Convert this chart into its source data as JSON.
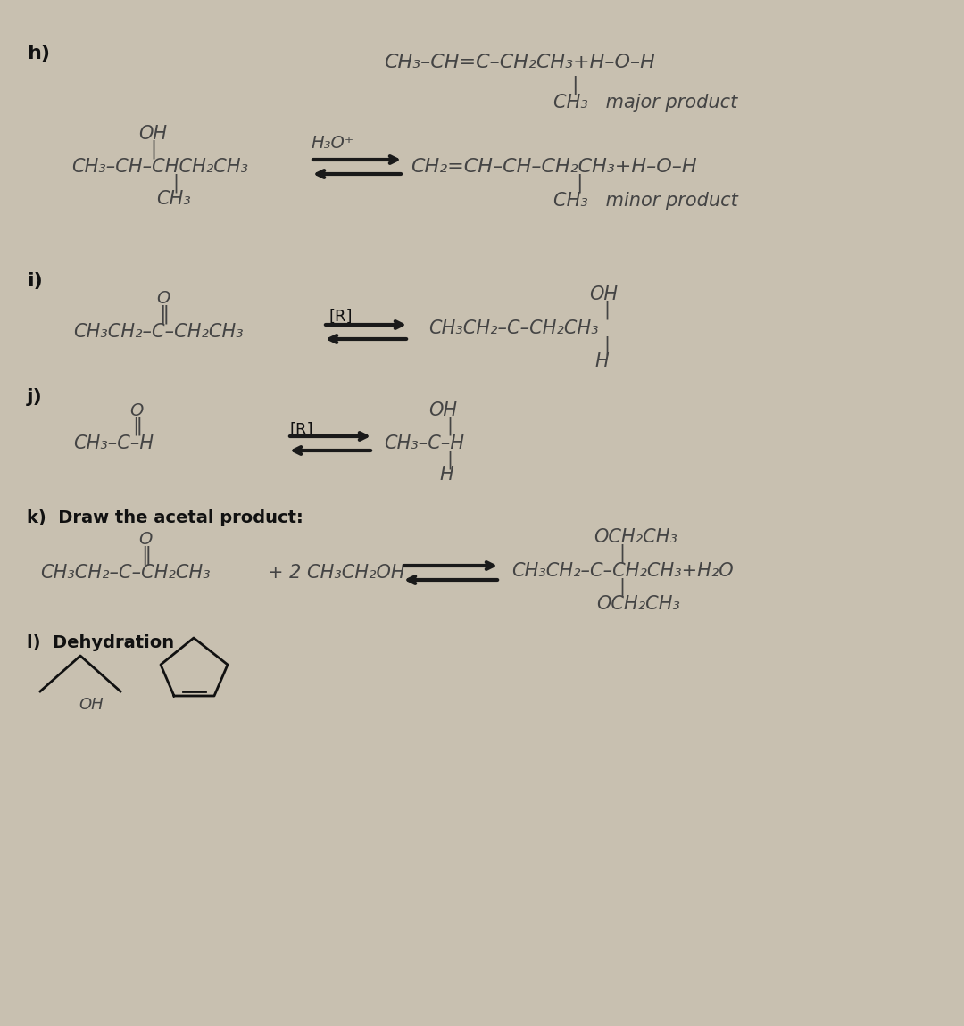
{
  "bg_color": "#c8c0b0",
  "paper_color": "#d4cdc0",
  "text_color": "#333333",
  "pencil_color": "#444444",
  "bold_color": "#111111",
  "arrow_color": "#1a1a1a",
  "h_label": "h)",
  "i_label": "i)",
  "j_label": "j)",
  "k_label": "k)  Draw the acetal product:",
  "l_label": "l)  Dehydration",
  "h_OH": "OH",
  "h_reactant": "CH₃–CH–CHCH₂CH₃",
  "h_CH3sub": "CH₃",
  "h_reagent": "H₃O⁺",
  "h_maj1": "CH₃–CH=C–CH₂CH₃+H–O–H",
  "h_maj_bar": "|",
  "h_maj2": "CH₃   major product",
  "h_min1": "CH₂=CH–CH–CH₂CH₃+H–O–H",
  "h_min_bar": "|",
  "h_min2": "CH₃   minor product",
  "i_O": "O",
  "i_dbl": "‖",
  "i_reactant": "CH₃CH₂–C–CH₂CH₃",
  "i_reagent": "[R]",
  "i_prod_OH": "OH",
  "i_prod": "CH₃CH₂–C–CH₂CH₃",
  "i_prod_H": "H",
  "j_O": "O",
  "j_dbl": "‖",
  "j_reactant": "CH₃–C–H",
  "j_reagent": "[R]",
  "j_prod_OH": "OH",
  "j_prod": "CH₃–C–H",
  "j_prod_H": "H",
  "k_O": "O",
  "k_dbl": "‖",
  "k_reactant": "CH₃CH₂–C–CH₂CH₃",
  "k_plus": "+ 2 CH₃CH₂OH",
  "k_prod_top": "OCH₂CH₃",
  "k_prod_mid": "CH₃CH₂–C–CH₂CH₃+H₂O",
  "k_prod_bot": "OCH₂CH₃",
  "l_OH": "OH"
}
